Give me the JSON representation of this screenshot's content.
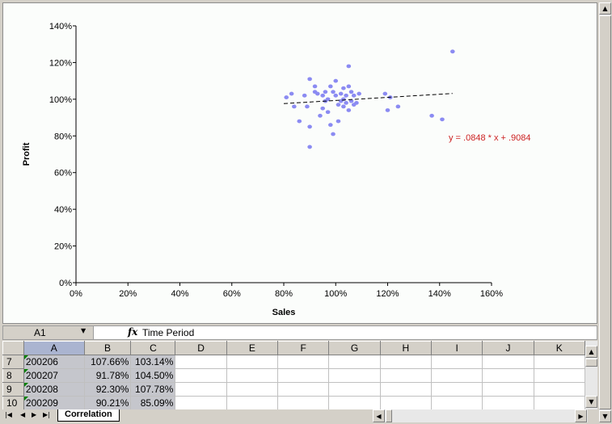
{
  "chart_data": {
    "type": "scatter",
    "xlabel": "Sales",
    "ylabel": "Profit",
    "x_ticks": [
      "0%",
      "20%",
      "40%",
      "60%",
      "80%",
      "100%",
      "120%",
      "140%",
      "160%"
    ],
    "y_ticks": [
      "0%",
      "20%",
      "40%",
      "60%",
      "80%",
      "100%",
      "120%",
      "140%"
    ],
    "xlim": [
      0,
      1.6
    ],
    "ylim": [
      0,
      1.4
    ],
    "trendline": {
      "equation": "y = .0848 * x + .9084",
      "slope": 0.0848,
      "intercept": 0.9084,
      "x_range": [
        0.8,
        1.45
      ],
      "color": "#cc2222"
    },
    "point_color": "#8b8bf2",
    "points": [
      [
        0.81,
        1.01
      ],
      [
        0.84,
        0.96
      ],
      [
        0.83,
        1.03
      ],
      [
        0.86,
        0.88
      ],
      [
        0.88,
        1.02
      ],
      [
        0.89,
        0.96
      ],
      [
        0.9,
        1.11
      ],
      [
        0.9,
        0.85
      ],
      [
        0.9,
        0.74
      ],
      [
        0.92,
        1.07
      ],
      [
        0.92,
        1.04
      ],
      [
        0.93,
        1.03
      ],
      [
        0.94,
        0.91
      ],
      [
        0.95,
        0.95
      ],
      [
        0.95,
        1.02
      ],
      [
        0.96,
        1.04
      ],
      [
        0.96,
        0.99
      ],
      [
        0.97,
        1.0
      ],
      [
        0.97,
        0.93
      ],
      [
        0.98,
        0.86
      ],
      [
        0.98,
        1.07
      ],
      [
        0.99,
        1.04
      ],
      [
        0.99,
        0.81
      ],
      [
        1.0,
        1.1
      ],
      [
        1.0,
        1.02
      ],
      [
        1.01,
        0.97
      ],
      [
        1.01,
        0.88
      ],
      [
        1.02,
        1.03
      ],
      [
        1.02,
        0.99
      ],
      [
        1.03,
        1.06
      ],
      [
        1.03,
        1.0
      ],
      [
        1.03,
        0.96
      ],
      [
        1.04,
        1.02
      ],
      [
        1.04,
        0.98
      ],
      [
        1.05,
        1.07
      ],
      [
        1.05,
        1.18
      ],
      [
        1.05,
        0.94
      ],
      [
        1.06,
        1.04
      ],
      [
        1.06,
        0.99
      ],
      [
        1.07,
        0.97
      ],
      [
        1.07,
        1.02
      ],
      [
        1.08,
        0.98
      ],
      [
        1.09,
        1.03
      ],
      [
        1.19,
        1.03
      ],
      [
        1.2,
        0.94
      ],
      [
        1.21,
        1.01
      ],
      [
        1.24,
        0.96
      ],
      [
        1.37,
        0.91
      ],
      [
        1.41,
        0.89
      ],
      [
        1.45,
        1.26
      ]
    ]
  },
  "formula_bar": {
    "cell_ref": "A1",
    "value": "Time Period"
  },
  "sheet": {
    "columns": [
      "A",
      "B",
      "C",
      "D",
      "E",
      "F",
      "G",
      "H",
      "I",
      "J",
      "K"
    ],
    "rows": [
      {
        "num": "7",
        "a": "200206",
        "b": "107.66%",
        "c": "103.14%"
      },
      {
        "num": "8",
        "a": "200207",
        "b": "91.78%",
        "c": "104.50%"
      },
      {
        "num": "9",
        "a": "200208",
        "b": "92.30%",
        "c": "107.78%"
      },
      {
        "num": "10",
        "a": "200209",
        "b": "90.21%",
        "c": "85.09%"
      }
    ]
  },
  "tab_label": "Correlation",
  "icons": {
    "scroll_up": "▲",
    "scroll_down": "▼",
    "scroll_left": "◀",
    "scroll_right": "▶",
    "nav_first": "|◀",
    "nav_prev": "◀",
    "nav_next": "▶",
    "nav_last": "▶|",
    "dropdown": "▼"
  }
}
